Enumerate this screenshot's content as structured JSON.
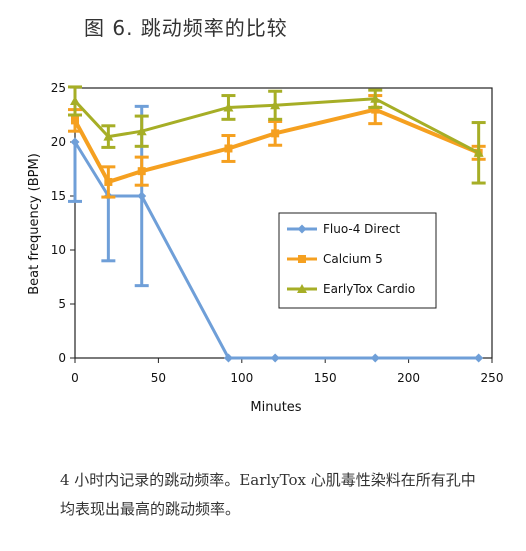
{
  "figure": {
    "title": "图 6. 跳动频率的比较",
    "caption_line1": "4 小时内记录的跳动频率。EarlyTox 心肌毒性染料在所有孔中",
    "caption_line2": "均表现出最高的跳动频率。"
  },
  "chart_data": {
    "type": "line",
    "xlabel": "Minutes",
    "ylabel": "Beat frequency (BPM)",
    "xlim": [
      0,
      250
    ],
    "ylim": [
      0,
      25
    ],
    "xticks": [
      0,
      50,
      100,
      150,
      200,
      250
    ],
    "yticks": [
      0,
      5,
      10,
      15,
      20,
      25
    ],
    "grid": false,
    "legend_position": "right-center",
    "series": [
      {
        "name": "Fluo-4 Direct",
        "color": "#6F9FD8",
        "marker": "diamond",
        "x": [
          0,
          20,
          40,
          92,
          120,
          180,
          242
        ],
        "y": [
          20,
          15,
          15,
          0,
          0,
          0,
          0
        ],
        "err_low": [
          5.5,
          6,
          8.3,
          0,
          0,
          0,
          0
        ],
        "err_high": [
          0,
          0,
          8.3,
          0,
          0,
          0,
          0
        ]
      },
      {
        "name": "Calcium 5",
        "color": "#F5A020",
        "marker": "square",
        "x": [
          0,
          20,
          40,
          92,
          120,
          180,
          242
        ],
        "y": [
          22,
          16.3,
          17.3,
          19.4,
          20.8,
          23,
          19
        ],
        "err_low": [
          1,
          1.4,
          1.3,
          1.2,
          1.1,
          1.3,
          0.6
        ],
        "err_high": [
          1,
          1.4,
          1.3,
          1.2,
          1.1,
          1.3,
          0.6
        ]
      },
      {
        "name": "EarlyTox Cardio",
        "color": "#A6AE26",
        "marker": "triangle",
        "x": [
          0,
          20,
          40,
          92,
          120,
          180,
          242
        ],
        "y": [
          23.8,
          20.5,
          21,
          23.2,
          23.4,
          24,
          19
        ],
        "err_low": [
          1.3,
          1,
          1.4,
          1.1,
          1.3,
          0.8,
          2.8
        ],
        "err_high": [
          1.3,
          1,
          1.4,
          1.1,
          1.3,
          0.8,
          2.8
        ]
      }
    ]
  }
}
